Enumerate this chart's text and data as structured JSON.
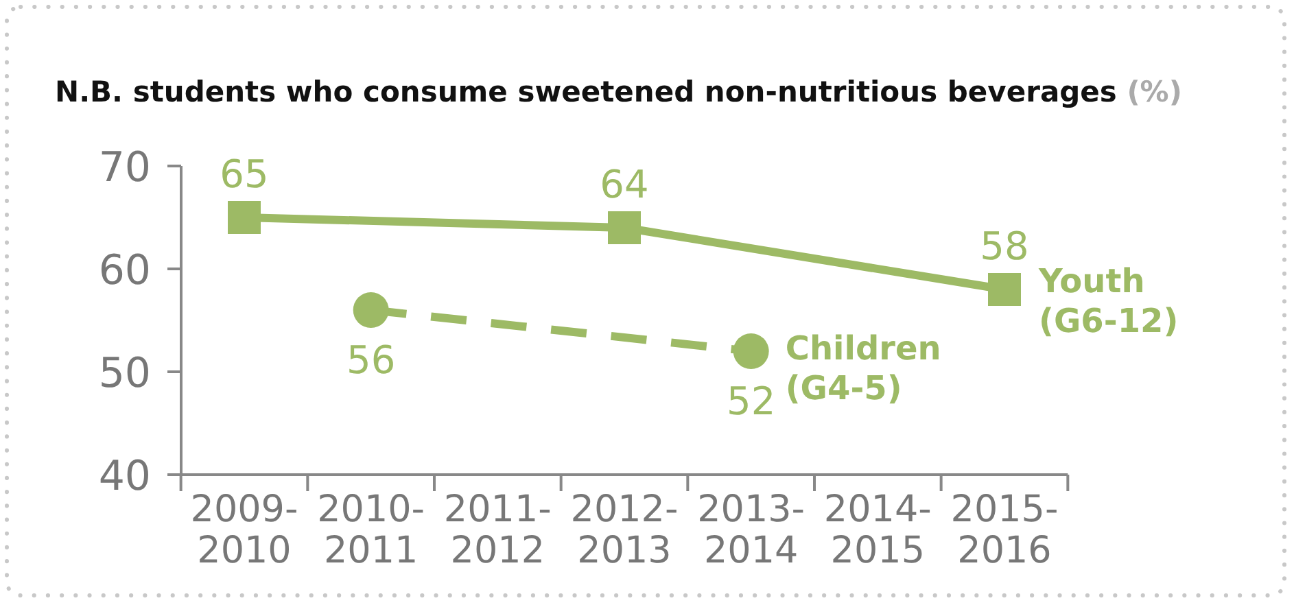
{
  "chart_data": {
    "type": "line",
    "title": "N.B. students who consume sweetened non-nutritious beverages (%)",
    "categories": [
      "2009-2010",
      "2010-2011",
      "2011-2012",
      "2012-2013",
      "2013-2014",
      "2014-2015",
      "2015-2016"
    ],
    "series": [
      {
        "name": "Youth (G6-12)",
        "color": "#9dba65",
        "x": [
          "2009-2010",
          "2012-2013",
          "2015-2016"
        ],
        "values": [
          65,
          64,
          58
        ],
        "marker": "square",
        "line_style": "solid"
      },
      {
        "name": "Children (G4-5)",
        "color": "#9dba65",
        "x": [
          "2010-2011",
          "2013-2014"
        ],
        "values": [
          56,
          52
        ],
        "marker": "circle",
        "line_style": "dashed"
      }
    ],
    "ylim": [
      40,
      70
    ],
    "yticks": [
      40,
      50,
      60,
      70
    ],
    "grid": false,
    "data_labels": true
  }
}
